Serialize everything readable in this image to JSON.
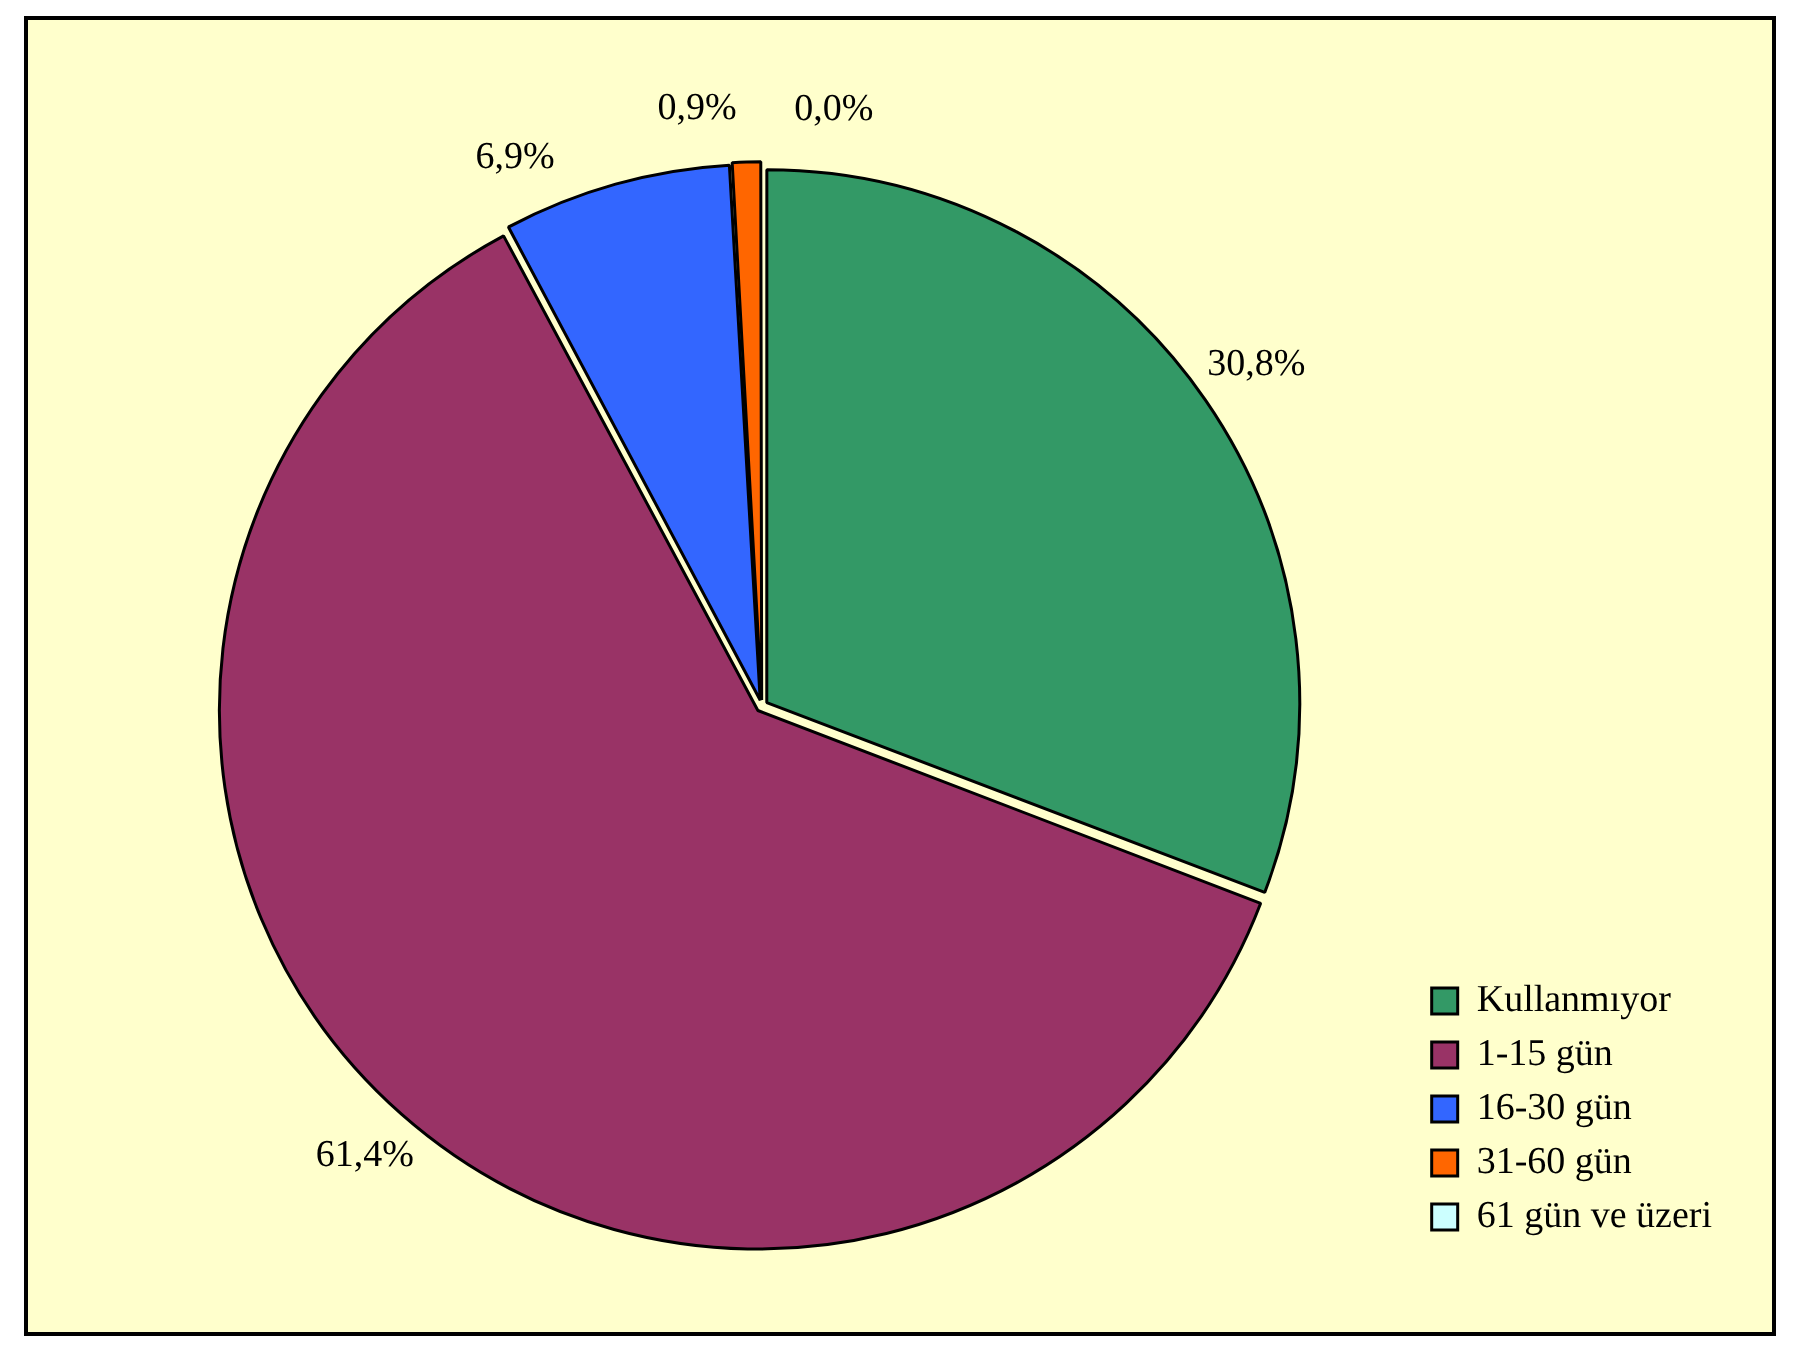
{
  "chart_data": {
    "type": "pie",
    "categories": [
      "Kullanmıyor",
      "1-15 gün",
      "16-30 gün",
      "31-60 gün",
      "61 gün ve üzeri"
    ],
    "values": [
      30.8,
      61.4,
      6.9,
      0.9,
      0.0
    ],
    "colors": [
      "#339966",
      "#993366",
      "#3366ff",
      "#ff6600",
      "#ccffff"
    ],
    "value_labels": [
      "30,8%",
      "61,4%",
      "6,9%",
      "0,9%",
      "0,0%"
    ],
    "legend": "bottom right"
  }
}
